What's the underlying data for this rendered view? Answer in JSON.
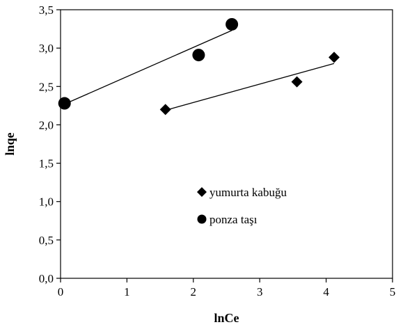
{
  "chart_data": {
    "type": "scatter",
    "xlabel": "lnCe",
    "ylabel": "lnqe",
    "xlim": [
      0,
      5
    ],
    "ylim": [
      0,
      3.5
    ],
    "x_ticks": [
      "0",
      "1",
      "2",
      "3",
      "4",
      "5"
    ],
    "y_ticks": [
      "0,0",
      "0,5",
      "1,0",
      "1,5",
      "2,0",
      "2,5",
      "3,0",
      "3,5"
    ],
    "grid": false,
    "legend_position": "center-right",
    "series": [
      {
        "name": "yumurta kabuğu",
        "marker": "diamond",
        "color": "#000000",
        "x": [
          1.58,
          3.56,
          4.12
        ],
        "y": [
          2.2,
          2.56,
          2.88
        ],
        "trendline": {
          "x": [
            1.58,
            4.12
          ],
          "y": [
            2.19,
            2.8
          ]
        }
      },
      {
        "name": "ponza taşı",
        "marker": "circle",
        "color": "#000000",
        "x": [
          0.06,
          2.08,
          2.58
        ],
        "y": [
          2.28,
          2.91,
          3.31
        ],
        "trendline": {
          "x": [
            0.06,
            2.58
          ],
          "y": [
            2.27,
            3.23
          ]
        }
      }
    ]
  }
}
